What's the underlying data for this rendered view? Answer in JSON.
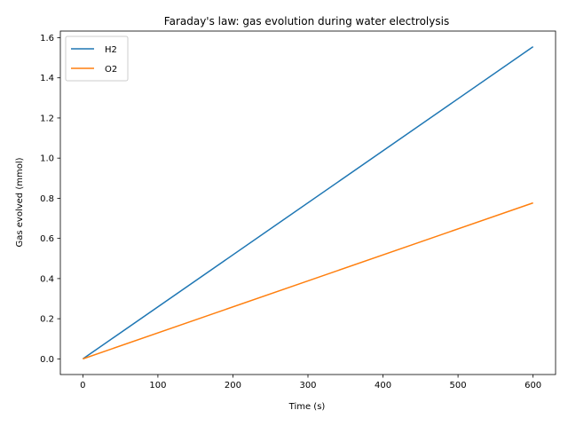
{
  "chart_data": {
    "type": "line",
    "title": "Faraday's law: gas evolution during water electrolysis",
    "xlabel": "Time (s)",
    "ylabel": "Gas evolved (mmol)",
    "xlim": [
      -30,
      630
    ],
    "ylim": [
      -0.078,
      1.633
    ],
    "xticks": [
      0,
      100,
      200,
      300,
      400,
      500,
      600
    ],
    "xtick_labels": [
      "0",
      "100",
      "200",
      "300",
      "400",
      "500",
      "600"
    ],
    "yticks": [
      0.0,
      0.2,
      0.4,
      0.6,
      0.8,
      1.0,
      1.2,
      1.4,
      1.6
    ],
    "ytick_labels": [
      "0.0",
      "0.2",
      "0.4",
      "0.6",
      "0.8",
      "1.0",
      "1.2",
      "1.4",
      "1.6"
    ],
    "grid": false,
    "legend_position": "upper-left",
    "series": [
      {
        "name": "H2",
        "color": "#1f77b4",
        "x": [
          0,
          600
        ],
        "y": [
          0.0,
          1.555
        ]
      },
      {
        "name": "O2",
        "color": "#ff7f0e",
        "x": [
          0,
          600
        ],
        "y": [
          0.0,
          0.777
        ]
      }
    ]
  }
}
